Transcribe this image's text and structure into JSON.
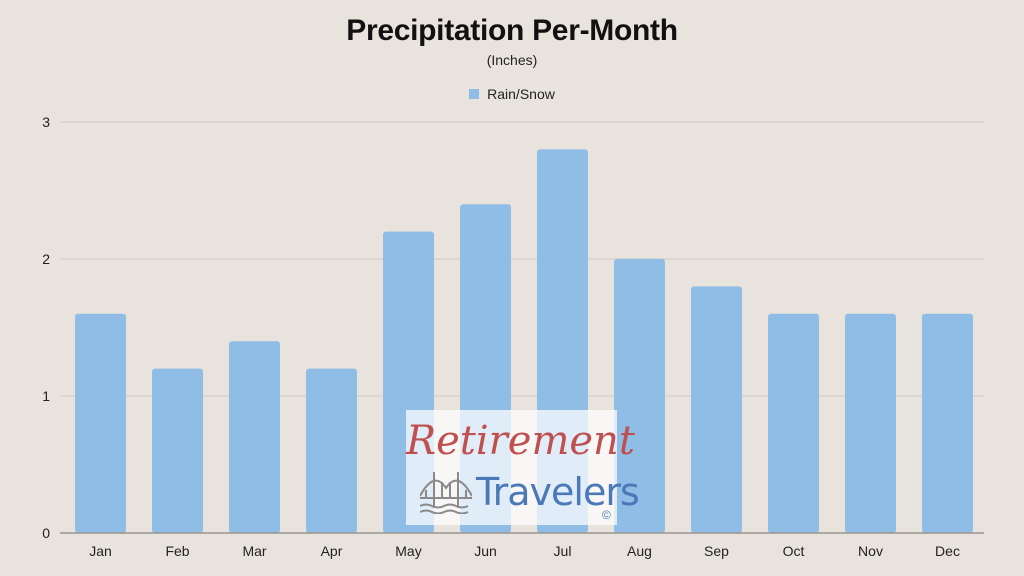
{
  "chart_data": {
    "type": "bar",
    "title": "Precipitation Per-Month",
    "subtitle": "(Inches)",
    "categories": [
      "Jan",
      "Feb",
      "Mar",
      "Apr",
      "May",
      "Jun",
      "Jul",
      "Aug",
      "Sep",
      "Oct",
      "Nov",
      "Dec"
    ],
    "series": [
      {
        "name": "Rain/Snow",
        "values": [
          1.6,
          1.2,
          1.4,
          1.2,
          2.2,
          2.4,
          2.8,
          2.0,
          1.8,
          1.6,
          1.6,
          1.6
        ]
      }
    ],
    "ylim": [
      0,
      3
    ],
    "yticks": [
      0,
      1,
      2,
      3
    ],
    "xlabel": "",
    "ylabel": "",
    "grid": true,
    "legend_position": "top-center",
    "colors": {
      "bar": "#8fbde6",
      "grid": "#cfcac4",
      "axis": "#9a9590",
      "background": "#e8e3dd"
    }
  },
  "watermark": {
    "line1": "Retirement",
    "line2": "Travelers",
    "copyright": "©",
    "icon": "bridge-icon"
  }
}
